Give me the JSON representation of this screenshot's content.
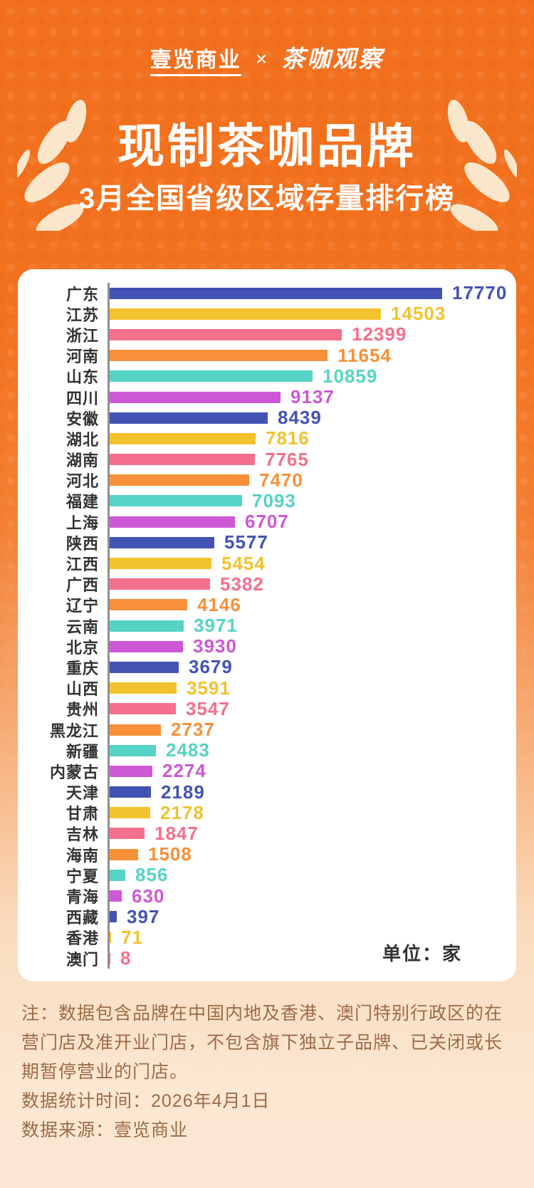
{
  "header": {
    "brand_left": "壹览商业",
    "separator": "×",
    "brand_right": "茶咖观察"
  },
  "chart_data": {
    "type": "bar",
    "orientation": "horizontal",
    "title": "现制茶咖品牌",
    "subtitle": "3月全国省级区域存量排行榜",
    "unit_label": "单位：家",
    "xlim": [
      0,
      17770
    ],
    "grid": false,
    "legend": "none",
    "categories": [
      "广东",
      "江苏",
      "浙江",
      "河南",
      "山东",
      "四川",
      "安徽",
      "湖北",
      "湖南",
      "河北",
      "福建",
      "上海",
      "陕西",
      "江西",
      "广西",
      "辽宁",
      "云南",
      "北京",
      "重庆",
      "山西",
      "贵州",
      "黑龙江",
      "新疆",
      "内蒙古",
      "天津",
      "甘肃",
      "吉林",
      "海南",
      "宁夏",
      "青海",
      "西藏",
      "香港",
      "澳门"
    ],
    "values": [
      17770,
      14503,
      12399,
      11654,
      10859,
      9137,
      8439,
      7816,
      7765,
      7470,
      7093,
      6707,
      5577,
      5454,
      5382,
      4146,
      3971,
      3930,
      3679,
      3591,
      3547,
      2737,
      2483,
      2274,
      2189,
      2178,
      1847,
      1508,
      856,
      630,
      397,
      71,
      8
    ],
    "color_cycle": [
      "#4353B4",
      "#F2C22F",
      "#F4708C",
      "#F79038",
      "#55D3C4",
      "#CD58D6"
    ],
    "axis_color": "#8F8F8F"
  },
  "notes": {
    "note": "注：数据包含品牌在中国内地及香港、澳门特别行政区的在\n营门店及准开业门店，不包含旗下独立子品牌、已关闭或长\n期暂停营业的门店。",
    "stat_time": "数据统计时间：2026年4月1日",
    "source": "数据来源：壹览商业"
  },
  "theme": {
    "background_top": "#F2701E",
    "background_bottom": "#FBE7D2",
    "card_color": "#FFFFFF",
    "title_color": "#FFFFFF",
    "label_color": "#333333",
    "note_color": "#9C6B47",
    "decoration_color": "#FAE7CB"
  }
}
